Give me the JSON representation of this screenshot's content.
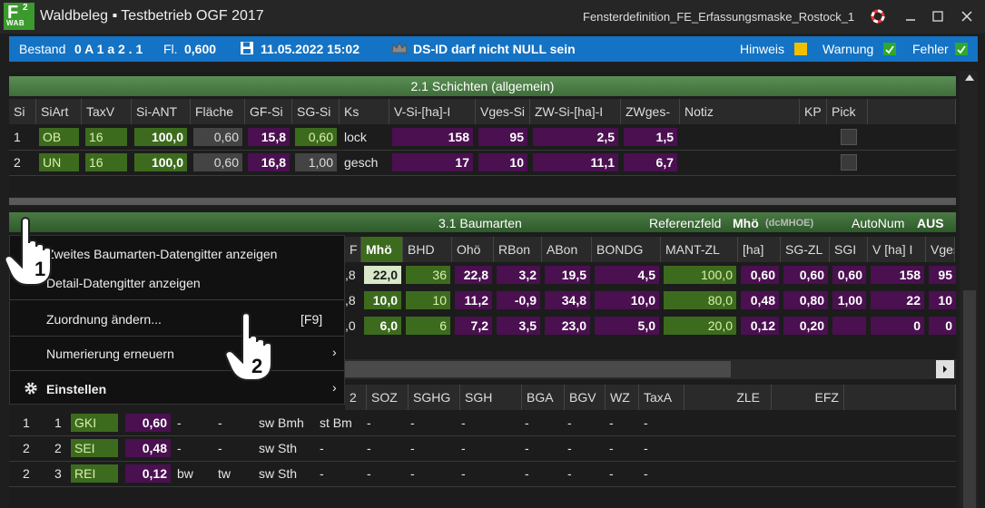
{
  "titlebar": {
    "logo_f": "F",
    "logo_sup": "2",
    "logo_sub": "WAB",
    "app_title": "Waldbeleg  ▪ Testbetrieb OGF 2017",
    "window_def": "Fensterdefinition_FE_Erfassungsmaske_Rostock_1",
    "icons": [
      "lifebuoy-icon",
      "minimize-icon",
      "maximize-icon",
      "close-icon"
    ]
  },
  "status": {
    "bestand_label": "Bestand",
    "bestand_value": "0 A 1 a 2 . 1",
    "fl_label": "Fl.",
    "fl_value": "0,600",
    "datetime": "11.05.2022 15:02",
    "message": "DS-ID darf nicht NULL sein",
    "hinweis": "Hinweis",
    "warnung": "Warnung",
    "fehler": "Fehler",
    "colors": {
      "bar": "#1473c4",
      "hinweis": "#f0c000",
      "ok": "#2ea82e"
    }
  },
  "schichten": {
    "title": "2.1 Schichten (allgemein)",
    "columns": [
      "Si",
      "SiArt",
      "TaxV",
      "Si-ANT",
      "Fläche",
      "GF-Si",
      "SG-Si",
      "Ks",
      "V-Si-[ha]-I",
      "Vges-Si",
      "ZW-Si-[ha]-I",
      "ZWges-",
      "Notiz",
      "KP",
      "Pick"
    ],
    "rows": [
      [
        "1",
        "OB",
        "16",
        "100,0",
        "0,60",
        "15,8",
        "0,60",
        "lock",
        "158",
        "95",
        "2,5",
        "1,5",
        "",
        "",
        ""
      ],
      [
        "2",
        "UN",
        "16",
        "100,0",
        "0,60",
        "16,8",
        "1,00",
        "gesch",
        "17",
        "10",
        "11,1",
        "6,7",
        "",
        "",
        ""
      ]
    ]
  },
  "baumarten": {
    "title": "3.1 Baumarten",
    "ref_label": "Referenzfeld",
    "ref_value": "Mhö",
    "ref_code": "(dcMHOE)",
    "autonum_label": "AutoNum",
    "autonum_value": "AUS",
    "columns": [
      "F",
      "Mhö",
      "BHD",
      "Ohö",
      "RBon",
      "ABon",
      "BONDG",
      "MANT-ZL",
      "[ha]",
      "SG-ZL",
      "SGI",
      "V [ha] I",
      "Vges."
    ],
    "rows": [
      [
        ",8",
        "22,0",
        "36",
        "22,8",
        "3,2",
        "19,5",
        "4,5",
        "100,0",
        "0,60",
        "0,60",
        "0,60",
        "158",
        "95"
      ],
      [
        ",8",
        "10,0",
        "10",
        "11,2",
        "-0,9",
        "34,8",
        "10,0",
        "80,0",
        "0,48",
        "0,80",
        "1,00",
        "22",
        "10"
      ],
      [
        ",0",
        "6,0",
        "6",
        "7,2",
        "3,5",
        "23,0",
        "5,0",
        "20,0",
        "0,12",
        "0,20",
        "",
        "0",
        "0"
      ]
    ]
  },
  "lower": {
    "columns": [
      "2",
      "SOZ",
      "SGHG",
      "SGH",
      "BGA",
      "BGV",
      "WZ",
      "TaxA",
      "ZLE",
      "EFZ"
    ],
    "rows": [
      [
        "1",
        "1",
        "GKI",
        "0,60",
        "-",
        "-",
        "sw Bmh",
        "st Bm",
        "-",
        "-",
        "-",
        "-",
        "-",
        "-",
        "-"
      ],
      [
        "2",
        "2",
        "SEI",
        "0,48",
        "-",
        "-",
        "sw Sth",
        "-",
        "-",
        "-",
        "-",
        "-",
        "-",
        "-",
        "-"
      ],
      [
        "2",
        "3",
        "REI",
        "0,12",
        "bw",
        "tw",
        "sw Sth",
        "-",
        "-",
        "-",
        "-",
        "-",
        "-",
        "-",
        "-"
      ]
    ]
  },
  "menu": {
    "items": [
      {
        "label": "Zweites Baumarten-Datengitter anzeigen"
      },
      {
        "label": "Detail-Datengitter anzeigen"
      },
      {
        "label": "Zuordnung ändern...",
        "shortcut": "[F9]"
      },
      {
        "label": "Numerierung erneuern",
        "submenu": "›"
      },
      {
        "label": "Einstellen",
        "submenu": "›",
        "icon": "gear-icon"
      }
    ]
  },
  "annotations": {
    "step1": "1",
    "step2": "2"
  }
}
